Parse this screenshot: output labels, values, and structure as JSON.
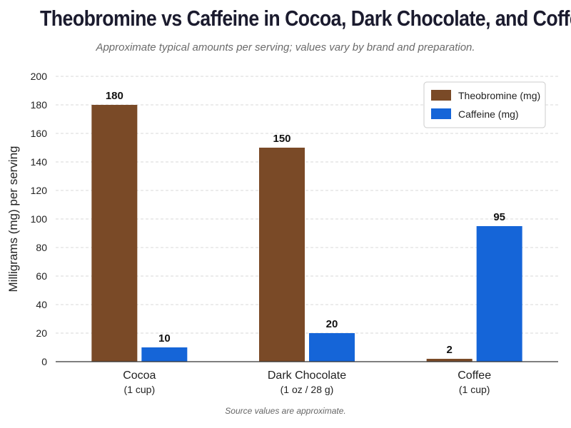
{
  "chart_data": {
    "type": "bar",
    "title": "Theobromine vs Caffeine in Cocoa, Dark Chocolate, and Coffee",
    "subtitle": "Approximate typical amounts per serving; values vary by brand and preparation.",
    "ylabel": "Milligrams (mg) per serving",
    "xlabel": "",
    "ylim": [
      0,
      200
    ],
    "yticks": [
      0,
      20,
      40,
      60,
      80,
      100,
      120,
      140,
      160,
      180,
      200
    ],
    "grid": true,
    "legend_position": "top-right",
    "categories": [
      {
        "name": "Cocoa",
        "sub": "(1 cup)"
      },
      {
        "name": "Dark Chocolate",
        "sub": "(1 oz / 28 g)"
      },
      {
        "name": "Coffee",
        "sub": "(1 cup)"
      }
    ],
    "series": [
      {
        "name": "Theobromine (mg)",
        "color": "#7a4a27",
        "values": [
          180,
          150,
          2
        ]
      },
      {
        "name": "Caffeine (mg)",
        "color": "#1565d8",
        "values": [
          10,
          20,
          95
        ]
      }
    ],
    "footnote": "Source values are approximate."
  }
}
